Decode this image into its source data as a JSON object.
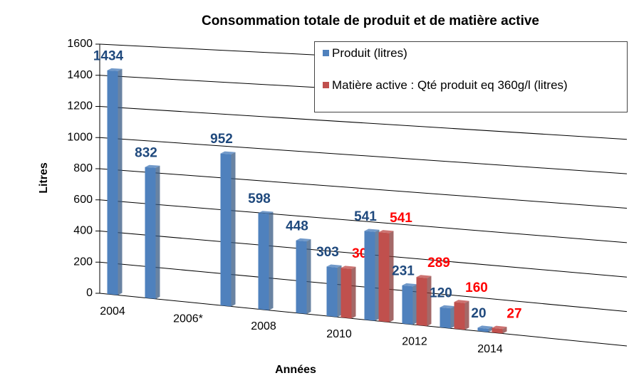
{
  "chart_data": {
    "type": "bar",
    "title": "Consommation totale de produit et de matière active",
    "x_label": "Années",
    "y_label": "Litres",
    "categories": [
      "2004",
      null,
      "2006*",
      null,
      "2008",
      null,
      "2010",
      null,
      "2012",
      null,
      "2014"
    ],
    "series": [
      {
        "name": "Produit (litres)",
        "color": "#4f81bd",
        "label_color": "#1f497d",
        "values": [
          1434,
          832,
          null,
          952,
          598,
          448,
          303,
          541,
          231,
          120,
          20
        ]
      },
      {
        "name": "Matière active : Qté produit eq 360g/l (litres)",
        "color": "#c0504d",
        "label_color": "#ff0000",
        "values": [
          null,
          null,
          null,
          null,
          null,
          null,
          303,
          541,
          289,
          160,
          27
        ]
      }
    ],
    "ylim": [
      0,
      1600
    ],
    "yticks": [
      0,
      200,
      400,
      600,
      800,
      1000,
      1200,
      1400,
      1600
    ],
    "grid": true,
    "legend": "top-right"
  }
}
